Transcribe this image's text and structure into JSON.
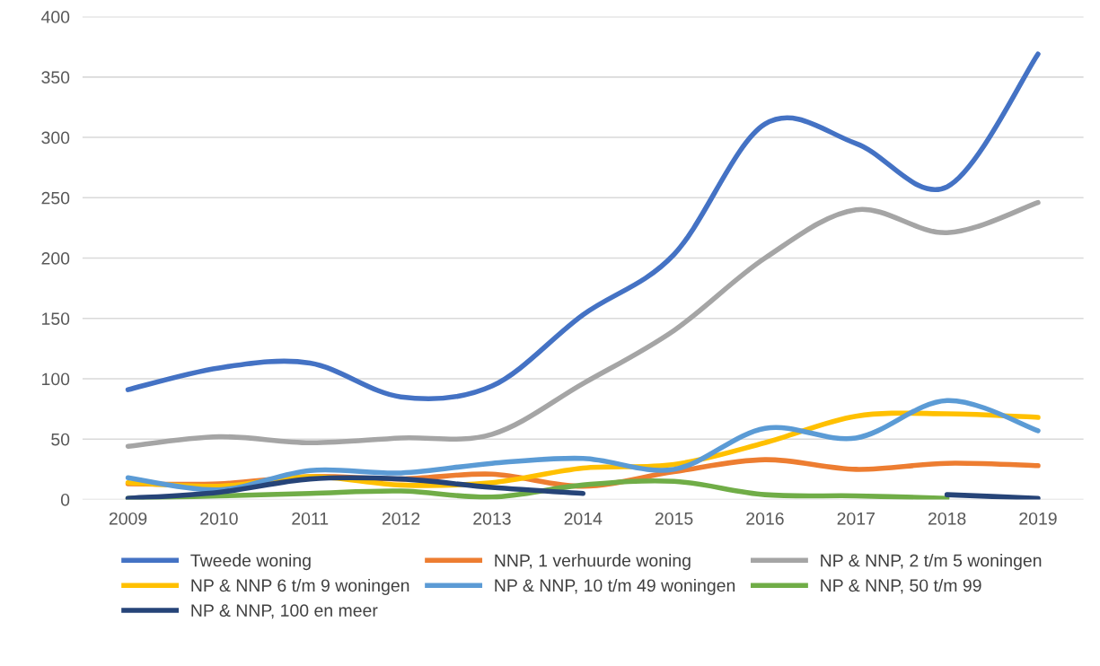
{
  "chart_data": {
    "type": "line",
    "categories": [
      "2009",
      "2010",
      "2011",
      "2012",
      "2013",
      "2014",
      "2015",
      "2016",
      "2017",
      "2018",
      "2019"
    ],
    "ylim": [
      0,
      400
    ],
    "yticks": [
      0,
      50,
      100,
      150,
      200,
      250,
      300,
      350,
      400
    ],
    "grid": "y",
    "legend": "bottom",
    "marker": "none",
    "line_style": "solid",
    "series": [
      {
        "name": "Tweede woning",
        "color": "#4472c4",
        "values": [
          91,
          109,
          113,
          85,
          94,
          153,
          203,
          311,
          295,
          259,
          369
        ]
      },
      {
        "name": "NNP, 1 verhuurde woning",
        "color": "#ed7d31",
        "values": [
          13,
          13,
          19,
          17,
          21,
          11,
          23,
          33,
          25,
          30,
          28
        ]
      },
      {
        "name": "NP & NNP, 2 t/m 5 woningen",
        "color": "#a5a5a5",
        "values": [
          44,
          52,
          47,
          51,
          54,
          96,
          140,
          200,
          240,
          221,
          246
        ]
      },
      {
        "name": "NP & NNP 6 t/m 9 woningen",
        "color": "#ffc000",
        "values": [
          14,
          11,
          19,
          12,
          14,
          26,
          29,
          47,
          69,
          71,
          68
        ]
      },
      {
        "name": "NP & NNP, 10 t/m 49 woningen",
        "color": "#5b9bd5",
        "values": [
          18,
          8,
          24,
          22,
          30,
          34,
          25,
          59,
          51,
          82,
          57
        ]
      },
      {
        "name": "NP & NNP, 50 t/m 99",
        "color": "#70ad47",
        "values": [
          1,
          3,
          5,
          7,
          2,
          12,
          15,
          4,
          3,
          1,
          null
        ]
      },
      {
        "name": "NP & NNP, 100 en meer",
        "color": "#264478",
        "values": [
          1,
          6,
          17,
          17,
          10,
          5,
          null,
          null,
          null,
          4,
          1
        ]
      }
    ]
  }
}
